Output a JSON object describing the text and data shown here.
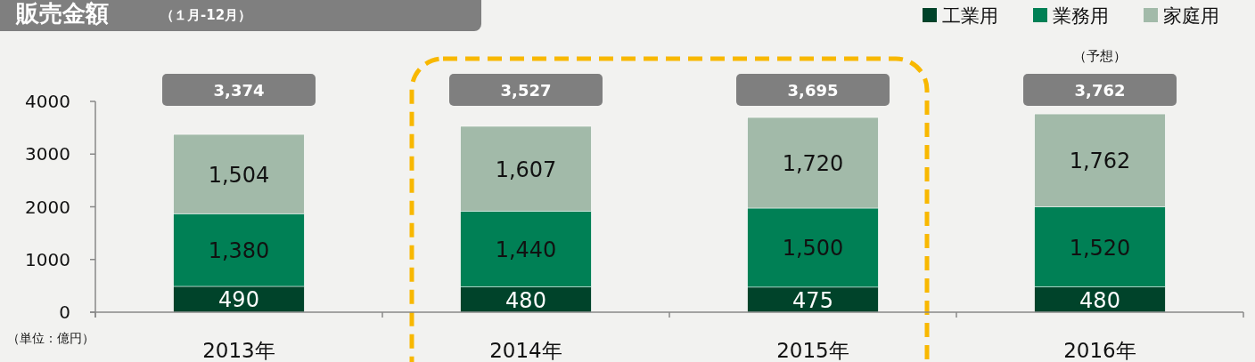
{
  "chart_data": {
    "type": "bar",
    "title": "販売金額",
    "subtitle": "（１月-12月）",
    "categories": [
      "2013年",
      "2014年",
      "2015年",
      "2016年"
    ],
    "stacked": true,
    "series": [
      {
        "name": "工業用",
        "color": "#00432a",
        "values": [
          490,
          480,
          475,
          480
        ],
        "value_labels": [
          "490",
          "480",
          "475",
          "480"
        ]
      },
      {
        "name": "業務用",
        "color": "#008055",
        "values": [
          1380,
          1440,
          1500,
          1520
        ],
        "value_labels": [
          "1,380",
          "1,440",
          "1,500",
          "1,520"
        ]
      },
      {
        "name": "家庭用",
        "color": "#a2baa9",
        "values": [
          1504,
          1607,
          1720,
          1762
        ],
        "value_labels": [
          "1,504",
          "1,607",
          "1,720",
          "1,762"
        ]
      }
    ],
    "totals": [
      "3,374",
      "3,527",
      "3,695",
      "3,762"
    ],
    "ylim": [
      0,
      4000
    ],
    "yticks": [
      0,
      1000,
      2000,
      3000,
      4000
    ],
    "grid": false,
    "legend": "top right",
    "annotations": [
      "（予想）",
      "（単位：億円）"
    ]
  }
}
